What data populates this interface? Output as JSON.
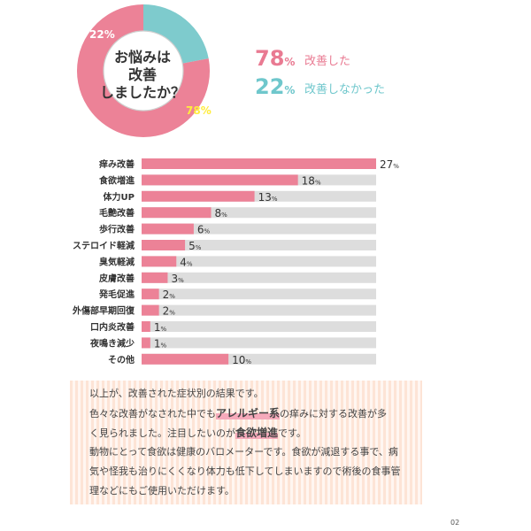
{
  "chart_data": [
    {
      "type": "pie",
      "title": "お悩みは\n改善\nしましたか？",
      "slices": [
        {
          "label": "改善した",
          "value": 78,
          "display": "78",
          "color": "#ec8297"
        },
        {
          "label": "改善しなかった",
          "value": 22,
          "display": "22",
          "color": "#7ecbcd"
        }
      ],
      "percent_sign": "%"
    },
    {
      "type": "bar",
      "orientation": "horizontal",
      "categories": [
        "痒み改善",
        "食欲増進",
        "体力UP",
        "毛艶改善",
        "歩行改善",
        "ステロイド軽減",
        "臭気軽減",
        "皮膚改善",
        "発毛促進",
        "外傷部早期回復",
        "口内炎改善",
        "夜鳴き減少",
        "その他"
      ],
      "values": [
        27,
        18,
        13,
        8,
        6,
        5,
        4,
        3,
        2,
        2,
        1,
        1,
        10
      ],
      "value_suffix": "%",
      "xlim": [
        0,
        27
      ],
      "bar_color": "#ec8297",
      "track_color": "#dddddd"
    }
  ],
  "note": {
    "line1": "以上が、改善された症状別の結果です。",
    "line2_pre": "色々な改善がなされた中でも",
    "line2_hl": "アレルギー系",
    "line2_post": "の痒みに対する改善が多",
    "line3_pre": "く見られました。注目したいのが",
    "line3_hl": "食欲増進",
    "line3_post": "です。",
    "line4": "動物にとって食欲は健康のバロメーターです。食欲が減退する事で、病",
    "line5": "気や怪我も治りにくくなり体力も低下してしまいますので術後の食事管",
    "line6": "理などにもご使用いただけます。"
  },
  "page_number": "02"
}
